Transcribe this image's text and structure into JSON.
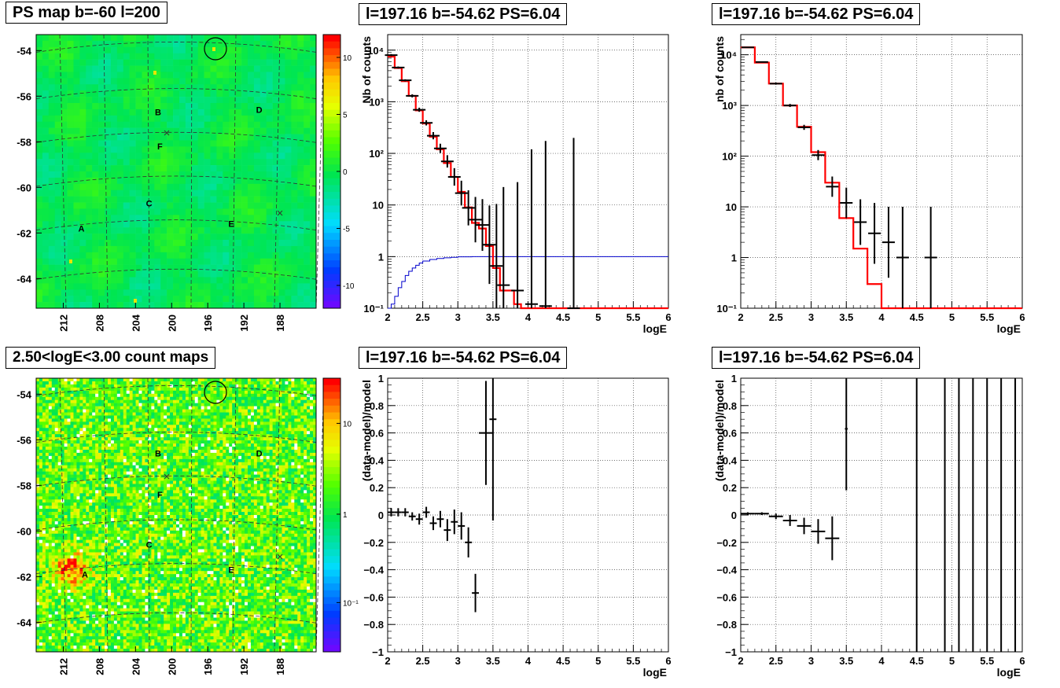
{
  "panels": {
    "ps_map": {
      "title": "PS map b=-60 l=200"
    },
    "count_map": {
      "title": "2.50<logE<3.00 count maps"
    },
    "spec1": {
      "title": "l=197.16 b=-54.62 PS=6.04"
    },
    "spec2": {
      "title": "l=197.16 b=-54.62 PS=6.04"
    },
    "ratio1": {
      "title": "l=197.16 b=-54.62 PS=6.04"
    },
    "ratio2": {
      "title": "l=197.16 b=-54.62 PS=6.04"
    }
  },
  "chart_data": [
    {
      "id": "ps_map",
      "type": "heatmap",
      "title": "PS map b=-60 l=200",
      "ylim": [
        -65.3,
        -53.3
      ],
      "yticks": [
        "-54",
        "-56",
        "-58",
        "-60",
        "-62",
        "-64"
      ],
      "xticks": [
        "212",
        "208",
        "204",
        "200",
        "196",
        "192",
        "188"
      ],
      "colorbar_ticks": [
        "10",
        "5",
        "0",
        "-5",
        "-10"
      ],
      "colorbar_range": [
        -12,
        12
      ],
      "source_labels": [
        {
          "label": "A",
          "l": 210.0,
          "b": -61.8
        },
        {
          "label": "B",
          "l": 201.5,
          "b": -56.7
        },
        {
          "label": "C",
          "l": 202.5,
          "b": -60.7
        },
        {
          "label": "D",
          "l": 190.3,
          "b": -56.6
        },
        {
          "label": "E",
          "l": 193.4,
          "b": -61.6
        },
        {
          "label": "F",
          "l": 201.3,
          "b": -58.2
        }
      ],
      "colors": [
        "#7f00ff",
        "#0033ff",
        "#00ccff",
        "#00ff66",
        "#33ff00",
        "#ccff00",
        "#ffcc00",
        "#ff6600",
        "#ff0000"
      ]
    },
    {
      "id": "count_map",
      "type": "heatmap",
      "title": "2.50<logE<3.00 count maps",
      "ylim": [
        -65.3,
        -53.3
      ],
      "yticks": [
        "-54",
        "-56",
        "-58",
        "-60",
        "-62",
        "-64"
      ],
      "xticks": [
        "212",
        "208",
        "204",
        "200",
        "196",
        "192",
        "188"
      ],
      "colorbar_ticks": [
        "10",
        "1",
        "10⁻¹"
      ],
      "colorbar_log": true,
      "source_labels": [
        {
          "label": "A",
          "l": 209.6,
          "b": -61.9
        },
        {
          "label": "B",
          "l": 201.5,
          "b": -56.6
        },
        {
          "label": "C",
          "l": 202.5,
          "b": -60.6
        },
        {
          "label": "D",
          "l": 190.3,
          "b": -56.6
        },
        {
          "label": "E",
          "l": 193.4,
          "b": -61.7
        },
        {
          "label": "F",
          "l": 201.3,
          "b": -58.4
        }
      ]
    },
    {
      "id": "spec1",
      "type": "line",
      "title": "l=197.16 b=-54.62 PS=6.04",
      "xlabel": "logE",
      "ylabel": "Nb of counts",
      "xlim": [
        2,
        6
      ],
      "ylim": [
        0.1,
        20000
      ],
      "log_y": true,
      "grid": true,
      "xticks": [
        "2",
        "2.5",
        "3",
        "3.5",
        "4",
        "4.5",
        "5",
        "5.5",
        "6"
      ],
      "yticks": [
        "10⁻¹",
        "1",
        "10",
        "10²",
        "10³",
        "10⁴"
      ],
      "series": [
        {
          "kind": "hist",
          "color": "#ff0000",
          "edges": [
            2,
            2.1,
            2.2,
            2.3,
            2.4,
            2.5,
            2.6,
            2.7,
            2.8,
            2.9,
            3.0,
            3.1,
            3.2,
            3.3,
            3.4,
            3.5,
            3.6,
            3.7,
            3.8,
            3.9,
            4.0,
            4.1,
            4.2,
            6.0
          ],
          "values": [
            7500,
            4500,
            2500,
            1300,
            680,
            380,
            210,
            120,
            65,
            35,
            18,
            9,
            4.5,
            3.5,
            1.6,
            0.6,
            0.22,
            0.22,
            0.12,
            0.09,
            0.09,
            0.09,
            0.09
          ]
        },
        {
          "kind": "hist",
          "color": "#0000cc",
          "edges": [
            2,
            2.05,
            2.1,
            2.15,
            2.2,
            2.25,
            2.3,
            2.35,
            2.4,
            2.45,
            2.5,
            2.6,
            2.7,
            2.8,
            2.9,
            3.0,
            3.2,
            6.0
          ],
          "values": [
            0.08,
            0.12,
            0.17,
            0.25,
            0.33,
            0.43,
            0.52,
            0.6,
            0.68,
            0.75,
            0.82,
            0.88,
            0.92,
            0.95,
            0.97,
            0.99,
            1.0
          ]
        },
        {
          "kind": "points",
          "color": "#000000",
          "x": [
            2.05,
            2.15,
            2.25,
            2.35,
            2.45,
            2.55,
            2.65,
            2.75,
            2.85,
            2.95,
            3.05,
            3.15,
            3.25,
            3.35,
            3.45,
            3.55,
            3.65,
            3.85,
            4.05,
            4.25,
            4.65
          ],
          "y": [
            8000,
            4600,
            2600,
            1300,
            700,
            390,
            220,
            125,
            70,
            35,
            17,
            8.8,
            5.2,
            4.1,
            1.7,
            0.66,
            0.28,
            0.22,
            0.12,
            0.11,
            0.1
          ],
          "err": [
            0.02,
            0.02,
            0.02,
            0.03,
            0.04,
            0.05,
            0.07,
            0.09,
            0.12,
            0.17,
            0.24,
            0.34,
            0.44,
            0.5,
            0.76,
            1.2,
            1.9,
            2.1,
            3.0,
            3.2,
            3.3
          ]
        }
      ]
    },
    {
      "id": "spec2",
      "type": "line",
      "title": "l=197.16 b=-54.62 PS=6.04",
      "xlabel": "logE",
      "ylabel": "nb of counts",
      "xlim": [
        2,
        6
      ],
      "ylim": [
        0.1,
        25000
      ],
      "log_y": true,
      "grid": true,
      "xticks": [
        "2",
        "2.5",
        "3",
        "3.5",
        "4",
        "4.5",
        "5",
        "5.5",
        "6"
      ],
      "yticks": [
        "10⁻¹",
        "1",
        "10",
        "10²",
        "10³",
        "10⁴"
      ],
      "series": [
        {
          "kind": "hist",
          "color": "#ff0000",
          "edges": [
            2,
            2.2,
            2.4,
            2.6,
            2.8,
            3.0,
            3.2,
            3.4,
            3.6,
            3.8,
            4.0,
            4.2,
            6.0
          ],
          "values": [
            14000,
            7000,
            2700,
            1000,
            380,
            120,
            30,
            6,
            1.5,
            0.3,
            0.1,
            0.09
          ]
        },
        {
          "kind": "points",
          "color": "#000000",
          "x": [
            2.1,
            2.3,
            2.5,
            2.7,
            2.9,
            3.1,
            3.3,
            3.5,
            3.7,
            3.9,
            4.1,
            4.3,
            4.7
          ],
          "y": [
            14000,
            7200,
            2700,
            1000,
            370,
            105,
            25,
            12,
            5,
            3,
            2,
            1,
            1
          ],
          "err": [
            0.01,
            0.01,
            0.02,
            0.03,
            0.05,
            0.1,
            0.2,
            0.3,
            0.45,
            0.6,
            0.7,
            1.0,
            1.0
          ]
        }
      ]
    },
    {
      "id": "ratio1",
      "type": "scatter",
      "title": "l=197.16 b=-54.62 PS=6.04",
      "xlabel": "logE",
      "ylabel": "(data-model)/model",
      "xlim": [
        2,
        6
      ],
      "ylim": [
        -1,
        1
      ],
      "grid": true,
      "xticks": [
        "2",
        "2.5",
        "3",
        "3.5",
        "4",
        "4.5",
        "5",
        "5.5",
        "6"
      ],
      "yticks": [
        "−1",
        "−0.8",
        "−0.6",
        "−0.4",
        "−0.2",
        "0",
        "0.2",
        "0.4",
        "0.6",
        "0.8",
        "1"
      ],
      "series": [
        {
          "x": [
            2.05,
            2.15,
            2.25,
            2.35,
            2.45,
            2.55,
            2.65,
            2.75,
            2.85,
            2.95,
            3.05,
            3.15,
            3.25,
            3.4,
            3.5
          ],
          "y": [
            0.02,
            0.02,
            0.02,
            -0.01,
            -0.03,
            0.02,
            -0.06,
            -0.03,
            -0.11,
            -0.05,
            -0.08,
            -0.2,
            -0.57,
            0.6,
            0.7
          ],
          "yerr": [
            0.03,
            0.03,
            0.03,
            0.03,
            0.04,
            0.04,
            0.05,
            0.06,
            0.08,
            0.09,
            0.1,
            0.11,
            0.14,
            0.38,
            0.74
          ],
          "xerr": [
            0.05,
            0.05,
            0.05,
            0.05,
            0.05,
            0.05,
            0.05,
            0.05,
            0.05,
            0.05,
            0.05,
            0.05,
            0.05,
            0.1,
            0.05
          ]
        }
      ]
    },
    {
      "id": "ratio2",
      "type": "scatter",
      "title": "l=197.16 b=-54.62 PS=6.04",
      "xlabel": "logE",
      "ylabel": "(data-model)/model",
      "xlim": [
        2,
        6
      ],
      "ylim": [
        -1,
        1
      ],
      "grid": true,
      "xticks": [
        "2",
        "2.5",
        "3",
        "3.5",
        "4",
        "4.5",
        "5",
        "5.5",
        "6"
      ],
      "yticks": [
        "−1",
        "−0.8",
        "−0.6",
        "−0.4",
        "−0.2",
        "0",
        "0.2",
        "0.4",
        "0.6",
        "0.8",
        "1"
      ],
      "series": [
        {
          "x": [
            2.1,
            2.3,
            2.5,
            2.7,
            2.9,
            3.1,
            3.3,
            3.5
          ],
          "y": [
            0.01,
            0.01,
            -0.01,
            -0.04,
            -0.08,
            -0.12,
            -0.17,
            0.63
          ],
          "yerr": [
            0.01,
            0.01,
            0.02,
            0.04,
            0.06,
            0.09,
            0.16,
            0.45
          ],
          "xerr": [
            0.1,
            0.1,
            0.1,
            0.1,
            0.1,
            0.1,
            0.1,
            0.02
          ]
        },
        {
          "kind": "vlines",
          "x": [
            4.5,
            4.9,
            5.1,
            5.3,
            5.5,
            5.7,
            5.9
          ],
          "y0": -1,
          "y1": 1
        }
      ]
    }
  ]
}
